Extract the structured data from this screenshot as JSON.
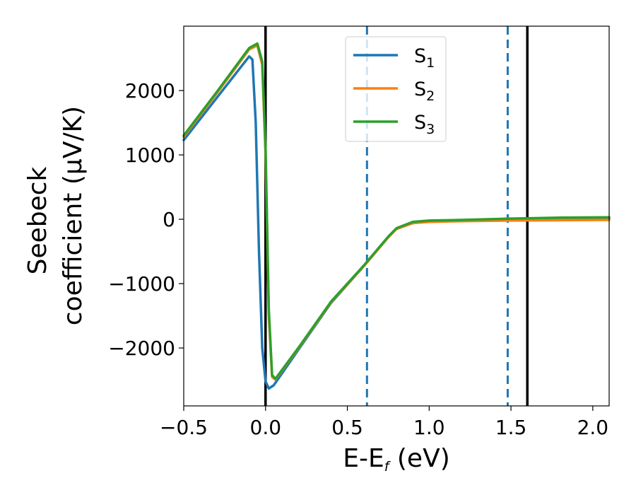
{
  "chart_data": {
    "type": "line",
    "xlabel": "E-E",
    "xlabel_sub": "f",
    "xlabel_unit": " (eV)",
    "ylabel_line1": "Seebeck",
    "ylabel_line2": "coefficient  (μV/K)",
    "xlim": [
      -0.5,
      2.1
    ],
    "ylim": [
      -2900,
      3000
    ],
    "xticks": [
      -0.5,
      0.0,
      0.5,
      1.0,
      1.5,
      2.0
    ],
    "xtick_labels": [
      "−0.5",
      "0.0",
      "0.5",
      "1.0",
      "1.5",
      "2.0"
    ],
    "yticks": [
      -2000,
      -1000,
      0,
      1000,
      2000
    ],
    "ytick_labels": [
      "−2000",
      "−1000",
      "0",
      "1000",
      "2000"
    ],
    "grid": false,
    "legend_position": "top-center",
    "vlines": [
      {
        "x": 0.0,
        "style": "solid",
        "color": "#000000"
      },
      {
        "x": 1.6,
        "style": "solid",
        "color": "#000000"
      },
      {
        "x": 0.62,
        "style": "dashed",
        "color": "#1f77b4"
      },
      {
        "x": 1.48,
        "style": "dashed",
        "color": "#1f77b4"
      }
    ],
    "series": [
      {
        "name": "S",
        "sub": "1",
        "color": "#1f77b4",
        "points": [
          [
            -0.5,
            1230
          ],
          [
            -0.3,
            1880
          ],
          [
            -0.1,
            2530
          ],
          [
            -0.08,
            2480
          ],
          [
            -0.06,
            1500
          ],
          [
            -0.04,
            -500
          ],
          [
            -0.02,
            -2000
          ],
          [
            0.0,
            -2520
          ],
          [
            0.02,
            -2630
          ],
          [
            0.05,
            -2580
          ],
          [
            0.2,
            -2030
          ],
          [
            0.4,
            -1300
          ],
          [
            0.6,
            -730
          ],
          [
            0.75,
            -280
          ],
          [
            0.8,
            -150
          ],
          [
            0.9,
            -60
          ],
          [
            1.0,
            -30
          ],
          [
            1.2,
            -20
          ],
          [
            1.5,
            -10
          ],
          [
            2.1,
            10
          ]
        ]
      },
      {
        "name": "S",
        "sub": "2",
        "color": "#ff7f0e",
        "points": [
          [
            -0.5,
            1280
          ],
          [
            -0.3,
            1950
          ],
          [
            -0.1,
            2640
          ],
          [
            -0.05,
            2700
          ],
          [
            -0.02,
            2400
          ],
          [
            0.0,
            1000
          ],
          [
            0.02,
            -1500
          ],
          [
            0.04,
            -2450
          ],
          [
            0.06,
            -2490
          ],
          [
            0.2,
            -2010
          ],
          [
            0.4,
            -1290
          ],
          [
            0.6,
            -730
          ],
          [
            0.75,
            -280
          ],
          [
            0.8,
            -150
          ],
          [
            0.9,
            -60
          ],
          [
            1.0,
            -40
          ],
          [
            1.2,
            -30
          ],
          [
            1.5,
            -20
          ],
          [
            1.8,
            -15
          ],
          [
            2.1,
            -10
          ]
        ]
      },
      {
        "name": "S",
        "sub": "3",
        "color": "#2ca02c",
        "points": [
          [
            -0.5,
            1300
          ],
          [
            -0.3,
            1970
          ],
          [
            -0.1,
            2660
          ],
          [
            -0.05,
            2730
          ],
          [
            -0.02,
            2450
          ],
          [
            0.0,
            1100
          ],
          [
            0.02,
            -1400
          ],
          [
            0.04,
            -2420
          ],
          [
            0.06,
            -2480
          ],
          [
            0.2,
            -2000
          ],
          [
            0.4,
            -1280
          ],
          [
            0.6,
            -720
          ],
          [
            0.75,
            -270
          ],
          [
            0.8,
            -140
          ],
          [
            0.9,
            -40
          ],
          [
            1.0,
            -20
          ],
          [
            1.2,
            -10
          ],
          [
            1.5,
            10
          ],
          [
            1.8,
            25
          ],
          [
            2.1,
            30
          ]
        ]
      }
    ]
  }
}
